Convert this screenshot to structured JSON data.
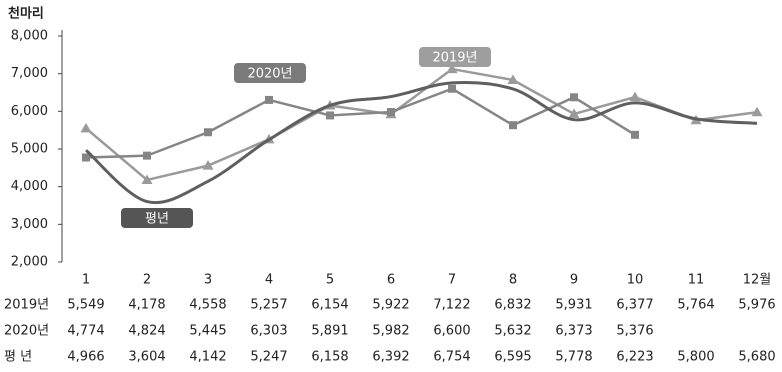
{
  "chart_data": {
    "type": "line",
    "unit_label": "천마리",
    "categories": [
      "1",
      "2",
      "3",
      "4",
      "5",
      "6",
      "7",
      "8",
      "9",
      "10",
      "11",
      "12월"
    ],
    "series": [
      {
        "name": "2019년",
        "color": "#9a9a9a",
        "marker": "triangle",
        "values": [
          5549,
          4178,
          4558,
          5257,
          6154,
          5922,
          7122,
          6832,
          5931,
          6377,
          5764,
          5976
        ],
        "value_labels": [
          "5,549",
          "4,178",
          "4,558",
          "5,257",
          "6,154",
          "5,922",
          "7,122",
          "6,832",
          "5,931",
          "6,377",
          "5,764",
          "5,976"
        ]
      },
      {
        "name": "2020년",
        "color": "#858585",
        "marker": "square",
        "values": [
          4774,
          4824,
          5445,
          6303,
          5891,
          5982,
          6600,
          5632,
          6373,
          5376,
          null,
          null
        ],
        "value_labels": [
          "4,774",
          "4,824",
          "5,445",
          "6,303",
          "5,891",
          "5,982",
          "6,600",
          "5,632",
          "6,373",
          "5,376",
          null,
          null
        ]
      },
      {
        "name": "평년",
        "color": "#5f5f5f",
        "marker": "none",
        "smooth": true,
        "values": [
          4966,
          3604,
          4142,
          5247,
          6158,
          6392,
          6754,
          6595,
          5778,
          6223,
          5800,
          5680
        ],
        "value_labels": [
          "4,966",
          "3,604",
          "4,142",
          "5,247",
          "6,158",
          "6,392",
          "6,754",
          "6,595",
          "5,778",
          "6,223",
          "5,800",
          "5,680"
        ]
      }
    ],
    "row_labels": [
      "2019년",
      "2020년",
      "평 년"
    ],
    "ylim": [
      2000,
      8000
    ],
    "yticks": [
      {
        "value": 2000,
        "label": "2,000"
      },
      {
        "value": 3000,
        "label": "3,000"
      },
      {
        "value": 4000,
        "label": "4,000"
      },
      {
        "value": 5000,
        "label": "5,000"
      },
      {
        "value": 6000,
        "label": "6,000"
      },
      {
        "value": 7000,
        "label": "7,000"
      },
      {
        "value": 8000,
        "label": "8,000"
      }
    ],
    "grid": false
  }
}
